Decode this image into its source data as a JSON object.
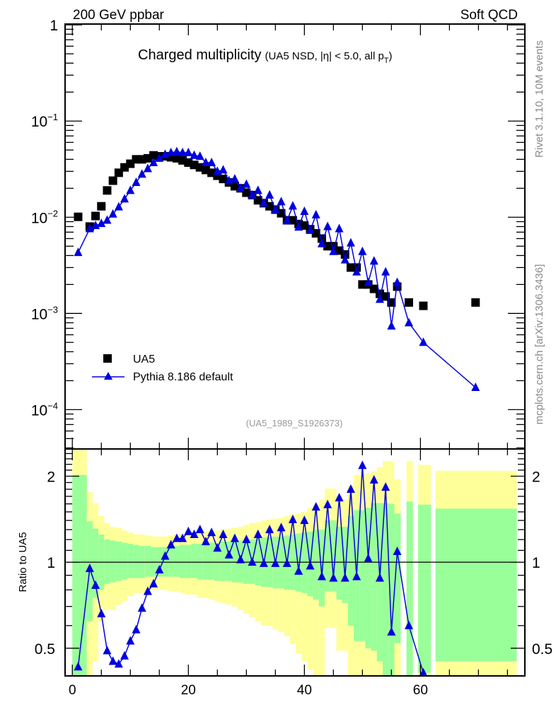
{
  "header": {
    "left": "200 GeV ppbar",
    "right": "Soft QCD"
  },
  "side_labels": {
    "rivet": "Rivet 3.1.10,  10M events",
    "mcplots": "mcplots.cern.ch [arXiv:1306.3436]"
  },
  "colors": {
    "data": "#000000",
    "mc": "#0000dd",
    "band_total": "#ffff99",
    "band_stat": "#99ff99"
  },
  "chart_data": [
    {
      "type": "scatter",
      "title": "Charged multiplicity",
      "subtitle_prefix": "(UA5 NSD, |η| < 5.0, all p",
      "subtitle_sub": "T",
      "subtitle_suffix": ")",
      "analysis_label": "(UA5_1989_S1926373)",
      "xlabel": "",
      "ylabel": "",
      "xlim": [
        -1.25,
        78
      ],
      "ylim": [
        3.9e-05,
        1.02
      ],
      "yscale": "log",
      "y_tick_values": [
        1,
        0.1,
        0.01,
        0.001,
        0.0001
      ],
      "y_tick_labels": [
        {
          "base": "1",
          "exp": ""
        },
        {
          "base": "10",
          "exp": "−1"
        },
        {
          "base": "10",
          "exp": "−2"
        },
        {
          "base": "10",
          "exp": "−3"
        },
        {
          "base": "10",
          "exp": "−4"
        }
      ],
      "legend_position": "lower-left",
      "series": [
        {
          "name": "UA5",
          "marker": "square",
          "x": [
            1,
            3,
            4,
            5,
            6,
            7,
            8,
            9,
            10,
            11,
            12,
            13,
            14,
            15,
            16,
            17,
            18,
            19,
            20,
            21,
            22,
            23,
            24,
            25,
            26,
            27,
            28,
            29,
            30,
            31,
            32,
            33,
            34,
            35,
            36,
            37,
            38,
            39,
            40,
            41,
            42,
            43,
            44,
            45,
            46,
            47,
            48,
            49,
            50,
            51,
            52,
            53,
            54,
            55,
            56,
            58,
            60.5,
            69.5
          ],
          "y": [
            0.0101,
            0.008,
            0.0103,
            0.013,
            0.019,
            0.024,
            0.029,
            0.033,
            0.036,
            0.04,
            0.04,
            0.041,
            0.044,
            0.043,
            0.043,
            0.042,
            0.041,
            0.039,
            0.037,
            0.035,
            0.033,
            0.031,
            0.029,
            0.027,
            0.025,
            0.023,
            0.021,
            0.02,
            0.018,
            0.017,
            0.015,
            0.014,
            0.013,
            0.012,
            0.011,
            0.0093,
            0.0093,
            0.0085,
            0.0082,
            0.0075,
            0.0068,
            0.006,
            0.005,
            0.005,
            0.0045,
            0.0041,
            0.003,
            0.003,
            0.002,
            0.002,
            0.0018,
            0.0016,
            0.0015,
            0.0013,
            0.0019,
            0.0013,
            0.0012,
            0.0013
          ]
        },
        {
          "name": "Pythia 8.186 default",
          "marker": "triangle",
          "x": [
            1,
            3,
            4,
            5,
            6,
            7,
            8,
            9,
            10,
            11,
            12,
            13,
            14,
            15,
            16,
            17,
            18,
            19,
            20,
            21,
            22,
            23,
            24,
            25,
            26,
            27,
            28,
            29,
            30,
            31,
            32,
            33,
            34,
            35,
            36,
            37,
            38,
            39,
            40,
            41,
            42,
            43,
            44,
            45,
            46,
            47,
            48,
            49,
            50,
            51,
            52,
            53,
            54,
            55,
            56,
            58,
            60.5,
            69.5
          ],
          "y": [
            0.0043,
            0.0076,
            0.0082,
            0.0086,
            0.0093,
            0.0108,
            0.0128,
            0.0155,
            0.019,
            0.023,
            0.028,
            0.032,
            0.037,
            0.041,
            0.045,
            0.047,
            0.048,
            0.047,
            0.047,
            0.044,
            0.043,
            0.037,
            0.037,
            0.03,
            0.031,
            0.024,
            0.025,
            0.02,
            0.022,
            0.017,
            0.019,
            0.014,
            0.017,
            0.012,
            0.0145,
            0.0092,
            0.0131,
            0.0079,
            0.0115,
            0.0073,
            0.0106,
            0.0053,
            0.008,
            0.0044,
            0.0076,
            0.0036,
            0.0054,
            0.0027,
            0.0044,
            0.0021,
            0.0035,
            0.0014,
            0.0027,
            0.00074,
            0.0021,
            0.0008,
            0.0005,
            0.00017
          ]
        }
      ]
    },
    {
      "type": "line",
      "ylabel": "Ratio to UA5",
      "xlabel": "",
      "xlim": [
        -1.25,
        78
      ],
      "ylim": [
        0.4,
        2.49
      ],
      "yscale": "log",
      "reference": 1,
      "x_tick_labels": [
        "0",
        "20",
        "40",
        "60"
      ],
      "x_tick_values": [
        0,
        20,
        40,
        60
      ],
      "y_tick_labels": [
        "2",
        "1",
        "0.5"
      ],
      "y_tick_values": [
        2,
        1,
        0.5
      ],
      "bands": {
        "x_lo": [
          0,
          2.5,
          3.5,
          4.5,
          5.5,
          6.5,
          7.5,
          8.5,
          9.5,
          10.5,
          11.5,
          12.5,
          13.5,
          14.5,
          15.5,
          16.5,
          17.5,
          18.5,
          19.5,
          20.5,
          21.5,
          22.5,
          23.5,
          24.5,
          25.5,
          26.5,
          27.5,
          28.5,
          29.5,
          30.5,
          31.5,
          32.5,
          33.5,
          34.5,
          35.5,
          36.5,
          37.5,
          38.5,
          39.5,
          40.5,
          41.5,
          42.5,
          43.5,
          44.5,
          45.5,
          46.5,
          47.5,
          48.5,
          49.5,
          50.5,
          51.5,
          52.5,
          53.5,
          54.5,
          55.5,
          57.6,
          59.6,
          62.6
        ],
        "x_hi": [
          2.5,
          3.5,
          4.5,
          5.5,
          6.5,
          7.5,
          8.5,
          9.5,
          10.5,
          11.5,
          12.5,
          13.5,
          14.5,
          15.5,
          16.5,
          17.5,
          18.5,
          19.5,
          20.5,
          21.5,
          22.5,
          23.5,
          24.5,
          25.5,
          26.5,
          27.5,
          28.5,
          29.5,
          30.5,
          31.5,
          32.5,
          33.5,
          34.5,
          35.5,
          36.5,
          37.5,
          38.5,
          39.5,
          40.5,
          41.5,
          42.5,
          43.5,
          44.5,
          45.5,
          46.5,
          47.5,
          48.5,
          49.5,
          50.5,
          51.5,
          52.5,
          53.5,
          54.5,
          55.5,
          56.6,
          58.7,
          61.8,
          76.6
        ],
        "total_hi": [
          2.6,
          1.76,
          1.61,
          1.45,
          1.37,
          1.33,
          1.32,
          1.29,
          1.27,
          1.25,
          1.25,
          1.24,
          1.23,
          1.23,
          1.23,
          1.24,
          1.25,
          1.25,
          1.26,
          1.27,
          1.27,
          1.28,
          1.29,
          1.29,
          1.3,
          1.31,
          1.32,
          1.33,
          1.35,
          1.37,
          1.38,
          1.4,
          1.41,
          1.42,
          1.43,
          1.45,
          1.47,
          1.48,
          1.5,
          1.55,
          1.6,
          1.66,
          1.81,
          1.81,
          1.7,
          1.66,
          1.85,
          2.02,
          2.02,
          2.05,
          2.08,
          2.15,
          2.26,
          2.26,
          1.95,
          2.26,
          2.19,
          2.09
        ],
        "stat_hi": [
          2.02,
          1.39,
          1.31,
          1.25,
          1.2,
          1.19,
          1.18,
          1.17,
          1.16,
          1.15,
          1.14,
          1.14,
          1.13,
          1.13,
          1.13,
          1.14,
          1.14,
          1.15,
          1.15,
          1.16,
          1.16,
          1.16,
          1.17,
          1.17,
          1.18,
          1.18,
          1.19,
          1.19,
          1.2,
          1.2,
          1.21,
          1.22,
          1.22,
          1.23,
          1.23,
          1.24,
          1.25,
          1.26,
          1.27,
          1.28,
          1.3,
          1.3,
          1.4,
          1.4,
          1.33,
          1.33,
          1.45,
          1.52,
          1.52,
          1.55,
          1.61,
          1.61,
          1.61,
          1.6,
          1.48,
          1.63,
          1.59,
          1.54
        ],
        "stat_lo": [
          0.3,
          0.62,
          0.75,
          0.8,
          0.84,
          0.85,
          0.86,
          0.87,
          0.88,
          0.88,
          0.88,
          0.89,
          0.89,
          0.89,
          0.89,
          0.89,
          0.89,
          0.88,
          0.88,
          0.88,
          0.87,
          0.87,
          0.87,
          0.86,
          0.86,
          0.86,
          0.85,
          0.85,
          0.84,
          0.84,
          0.83,
          0.82,
          0.82,
          0.81,
          0.81,
          0.8,
          0.8,
          0.79,
          0.78,
          0.76,
          0.74,
          0.7,
          0.79,
          0.79,
          0.74,
          0.72,
          0.6,
          0.53,
          0.53,
          0.5,
          0.49,
          0.45,
          0.36,
          0.35,
          0.52,
          0.3,
          0.41,
          0.45
        ],
        "total_lo": [
          0.3,
          0.3,
          0.45,
          0.62,
          0.68,
          0.68,
          0.71,
          0.73,
          0.76,
          0.78,
          0.78,
          0.79,
          0.8,
          0.8,
          0.8,
          0.79,
          0.79,
          0.78,
          0.77,
          0.77,
          0.75,
          0.75,
          0.74,
          0.73,
          0.72,
          0.71,
          0.7,
          0.68,
          0.66,
          0.64,
          0.62,
          0.6,
          0.6,
          0.58,
          0.57,
          0.55,
          0.52,
          0.48,
          0.45,
          0.42,
          0.38,
          0.38,
          0.59,
          0.59,
          0.49,
          0.49,
          0.38,
          0.38,
          0.38,
          0.38,
          0.38,
          0.38,
          0.3,
          0.3,
          0.3,
          0.3,
          0.3,
          0.3
        ]
      },
      "series": [
        {
          "name": "Pythia 8.186 default / UA5",
          "x": [
            1,
            3,
            4,
            5,
            6,
            7,
            8,
            9,
            10,
            11,
            12,
            13,
            14,
            15,
            16,
            17,
            18,
            19,
            20,
            21,
            22,
            23,
            24,
            25,
            26,
            27,
            28,
            29,
            30,
            31,
            32,
            33,
            34,
            35,
            36,
            37,
            38,
            39,
            40,
            41,
            42,
            43,
            44,
            45,
            46,
            47,
            48,
            49,
            50,
            51,
            52,
            53,
            54,
            55,
            56,
            58,
            60.5
          ],
          "y": [
            0.43,
            0.95,
            0.83,
            0.66,
            0.49,
            0.45,
            0.44,
            0.47,
            0.53,
            0.58,
            0.69,
            0.79,
            0.84,
            0.94,
            1.05,
            1.15,
            1.21,
            1.21,
            1.28,
            1.25,
            1.3,
            1.18,
            1.27,
            1.12,
            1.25,
            1.06,
            1.21,
            1.02,
            1.2,
            1.0,
            1.25,
            0.99,
            1.3,
            0.99,
            1.32,
            0.99,
            1.41,
            0.93,
            1.4,
            0.97,
            1.56,
            0.89,
            1.59,
            0.88,
            1.68,
            0.88,
            1.8,
            0.89,
            2.18,
            1.03,
            1.94,
            0.88,
            1.83,
            0.57,
            1.09,
            0.6,
            0.41
          ]
        }
      ]
    }
  ]
}
